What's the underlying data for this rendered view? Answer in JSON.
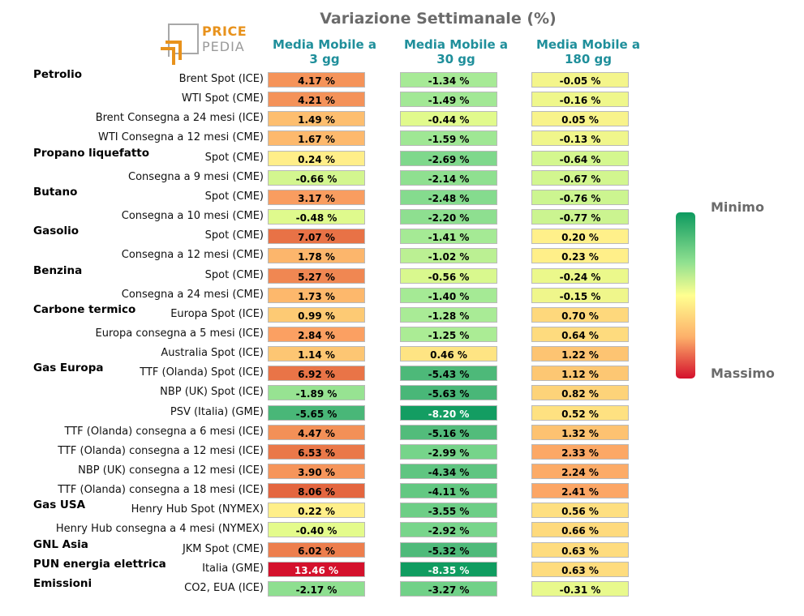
{
  "logo": {
    "line1": "PRICE",
    "line2": "PEDIA"
  },
  "legend": {
    "min_label": "Minimo",
    "max_label": "Massimo"
  },
  "chart_data": {
    "type": "table",
    "title": "Variazione Settimanale (%)",
    "columns": [
      "Media Mobile a 3 gg",
      "Media Mobile a 30 gg",
      "Media Mobile a 180 gg"
    ],
    "column_lines": [
      [
        "Media Mobile a",
        "3 gg"
      ],
      [
        "Media Mobile a",
        "30 gg"
      ],
      [
        "Media Mobile a",
        "180 gg"
      ]
    ],
    "groups": [
      {
        "name": "Petrolio",
        "first_row": 0
      },
      {
        "name": "Propano liquefatto",
        "first_row": 4
      },
      {
        "name": "Butano",
        "first_row": 6
      },
      {
        "name": "Gasolio",
        "first_row": 8
      },
      {
        "name": "Benzina",
        "first_row": 10
      },
      {
        "name": "Carbone termico",
        "first_row": 12
      },
      {
        "name": "Gas Europa",
        "first_row": 15
      },
      {
        "name": "Gas USA",
        "first_row": 22
      },
      {
        "name": "GNL Asia",
        "first_row": 24
      },
      {
        "name": "PUN energia elettrica",
        "first_row": 25
      },
      {
        "name": "Emissioni",
        "first_row": 26
      }
    ],
    "rows": [
      {
        "label": "Brent Spot (ICE)",
        "values": [
          4.17,
          -1.34,
          -0.05
        ]
      },
      {
        "label": "WTI Spot (CME)",
        "values": [
          4.21,
          -1.49,
          -0.16
        ]
      },
      {
        "label": "Brent Consegna a 24 mesi (ICE)",
        "values": [
          1.49,
          -0.44,
          0.05
        ]
      },
      {
        "label": "WTI Consegna a 12 mesi (CME)",
        "values": [
          1.67,
          -1.59,
          -0.13
        ]
      },
      {
        "label": "Spot (CME)",
        "values": [
          0.24,
          -2.69,
          -0.64
        ]
      },
      {
        "label": "Consegna a 9 mesi (CME)",
        "values": [
          -0.66,
          -2.14,
          -0.67
        ]
      },
      {
        "label": "Spot (CME)",
        "values": [
          3.17,
          -2.48,
          -0.76
        ]
      },
      {
        "label": "Consegna a 10 mesi (CME)",
        "values": [
          -0.48,
          -2.2,
          -0.77
        ]
      },
      {
        "label": "Spot (CME)",
        "values": [
          7.07,
          -1.41,
          0.2
        ]
      },
      {
        "label": "Consegna a 12 mesi (CME)",
        "values": [
          1.78,
          -1.02,
          0.23
        ]
      },
      {
        "label": "Spot (CME)",
        "values": [
          5.27,
          -0.56,
          -0.24
        ]
      },
      {
        "label": "Consegna a 24 mesi (CME)",
        "values": [
          1.73,
          -1.4,
          -0.15
        ]
      },
      {
        "label": "Europa Spot (ICE)",
        "values": [
          0.99,
          -1.28,
          0.7
        ]
      },
      {
        "label": "Europa consegna a 5 mesi (ICE)",
        "values": [
          2.84,
          -1.25,
          0.64
        ]
      },
      {
        "label": "Australia Spot (ICE)",
        "values": [
          1.14,
          0.46,
          1.22
        ]
      },
      {
        "label": "TTF (Olanda) Spot (ICE)",
        "values": [
          6.92,
          -5.43,
          1.12
        ]
      },
      {
        "label": "NBP (UK) Spot (ICE)",
        "values": [
          -1.89,
          -5.63,
          0.82
        ]
      },
      {
        "label": "PSV (Italia) (GME)",
        "values": [
          -5.65,
          -8.2,
          0.52
        ]
      },
      {
        "label": "TTF (Olanda) consegna a 6 mesi (ICE)",
        "values": [
          4.47,
          -5.16,
          1.32
        ]
      },
      {
        "label": "TTF (Olanda) consegna a 12 mesi (ICE)",
        "values": [
          6.53,
          -2.99,
          2.33
        ]
      },
      {
        "label": "NBP (UK) consegna a 12 mesi (ICE)",
        "values": [
          3.9,
          -4.34,
          2.24
        ]
      },
      {
        "label": "TTF (Olanda) consegna a 18 mesi (ICE)",
        "values": [
          8.06,
          -4.11,
          2.41
        ]
      },
      {
        "label": "Henry Hub Spot (NYMEX)",
        "values": [
          0.22,
          -3.55,
          0.56
        ]
      },
      {
        "label": "Henry Hub consegna a 4 mesi (NYMEX)",
        "values": [
          -0.4,
          -2.92,
          0.66
        ]
      },
      {
        "label": "JKM Spot (CME)",
        "values": [
          6.02,
          -5.32,
          0.63
        ]
      },
      {
        "label": "Italia (GME)",
        "values": [
          13.46,
          -8.35,
          0.63
        ]
      },
      {
        "label": "CO2, EUA (ICE)",
        "values": [
          -2.17,
          -3.27,
          -0.31
        ]
      }
    ],
    "value_suffix": " %",
    "color_scale": {
      "description": "green = Minimo, yellow = neutral, red = Massimo",
      "stops": [
        {
          "value": -8.5,
          "color": "#0d9a5f"
        },
        {
          "value": -5.5,
          "color": "#4cb879"
        },
        {
          "value": -3.0,
          "color": "#76d48a"
        },
        {
          "value": -1.3,
          "color": "#a8eb96"
        },
        {
          "value": -0.4,
          "color": "#e4fb8c"
        },
        {
          "value": 0.2,
          "color": "#fff08a"
        },
        {
          "value": 1.0,
          "color": "#fdca74"
        },
        {
          "value": 2.5,
          "color": "#fca464"
        },
        {
          "value": 5.0,
          "color": "#f18a54"
        },
        {
          "value": 8.0,
          "color": "#e4673f"
        },
        {
          "value": 13.5,
          "color": "#d4102c"
        }
      ]
    }
  }
}
